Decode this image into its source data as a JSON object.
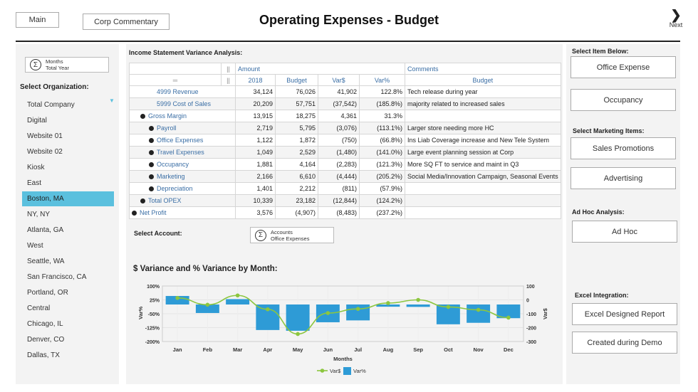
{
  "header": {
    "title": "Operating Expenses - Budget",
    "main_button": "Main",
    "corp_button": "Corp Commentary",
    "next_label": "Next"
  },
  "left": {
    "months_label": "Months",
    "months_value": "Total Year",
    "org_heading": "Select Organization:",
    "organizations": [
      "Total Company",
      "Digital",
      "Website 01",
      "Website 02",
      "Kiosk",
      "East",
      "Boston, MA",
      "NY, NY",
      "Atlanta, GA",
      "West",
      "Seattle, WA",
      "San Francisco, CA",
      "Portland, OR",
      "Central",
      "Chicago, IL",
      "Denver, CO",
      "Dallas, TX"
    ],
    "selected": "Boston, MA"
  },
  "table": {
    "title": "Income Statement Variance Analysis:",
    "group_amount": "Amount",
    "group_comments": "Comments",
    "columns": [
      "2018",
      "Budget",
      "Var$",
      "Var%",
      "Budget"
    ],
    "rows": [
      {
        "label": "4999 Revenue",
        "indent": 1,
        "icon": "none",
        "v": [
          "34,124",
          "76,026",
          "41,902",
          "122.8%"
        ],
        "comment": "Tech release during year"
      },
      {
        "label": "5999 Cost of Sales",
        "indent": 1,
        "icon": "none",
        "v": [
          "20,209",
          "57,751",
          "(37,542)",
          "(185.8%)"
        ],
        "comment": "majority related to increased sales"
      },
      {
        "label": "Gross Margin",
        "indent": 1,
        "icon": "collapse",
        "v": [
          "13,915",
          "18,275",
          "4,361",
          "31.3%"
        ],
        "comment": ""
      },
      {
        "label": "Payroll",
        "indent": 2,
        "icon": "expand",
        "v": [
          "2,719",
          "5,795",
          "(3,076)",
          "(113.1%)"
        ],
        "comment": "Larger store needing more HC"
      },
      {
        "label": "Office Expenses",
        "indent": 2,
        "icon": "expand",
        "v": [
          "1,122",
          "1,872",
          "(750)",
          "(66.8%)"
        ],
        "comment": "Ins Liab Coverage increase and New Tele System"
      },
      {
        "label": "Travel Expenses",
        "indent": 2,
        "icon": "expand",
        "v": [
          "1,049",
          "2,529",
          "(1,480)",
          "(141.0%)"
        ],
        "comment": "Large event planning session at Corp"
      },
      {
        "label": "Occupancy",
        "indent": 2,
        "icon": "expand",
        "v": [
          "1,881",
          "4,164",
          "(2,283)",
          "(121.3%)"
        ],
        "comment": "More SQ FT to service and maint in Q3"
      },
      {
        "label": "Marketing",
        "indent": 2,
        "icon": "expand",
        "v": [
          "2,166",
          "6,610",
          "(4,444)",
          "(205.2%)"
        ],
        "comment": "Social Media/Innovation Campaign, Seasonal Events"
      },
      {
        "label": "Depreciation",
        "indent": 2,
        "icon": "expand",
        "v": [
          "1,401",
          "2,212",
          "(811)",
          "(57.9%)"
        ],
        "comment": ""
      },
      {
        "label": "Total OPEX",
        "indent": 1,
        "icon": "collapse",
        "v": [
          "10,339",
          "23,182",
          "(12,844)",
          "(124.2%)"
        ],
        "comment": ""
      },
      {
        "label": "Net Profit",
        "indent": 0,
        "icon": "collapse",
        "v": [
          "3,576",
          "(4,907)",
          "(8,483)",
          "(237.2%)"
        ],
        "comment": ""
      }
    ]
  },
  "account": {
    "heading": "Select Account:",
    "label": "Accounts",
    "value": "Office Expenses"
  },
  "right": {
    "item_heading": "Select Item Below:",
    "items": [
      "Office Expense",
      "Occupancy"
    ],
    "marketing_heading": "Select Marketing Items:",
    "marketing": [
      "Sales Promotions",
      "Advertising"
    ],
    "adhoc_heading": "Ad Hoc Analysis:",
    "adhoc": "Ad Hoc",
    "excel_heading": "Excel Integration:",
    "excel": [
      "Excel Designed Report",
      "Created during Demo"
    ]
  },
  "chart_data": {
    "type": "bar+line",
    "title": "$ Variance and % Variance by Month:",
    "xlabel": "Months",
    "ylabel_left": "Var%",
    "ylabel_right": "Var$",
    "categories": [
      "Jan",
      "Feb",
      "Mar",
      "Apr",
      "May",
      "Jun",
      "Jul",
      "Aug",
      "Sep",
      "Oct",
      "Nov",
      "Dec"
    ],
    "y_left": {
      "range": [
        -200,
        100
      ],
      "ticks": [
        "100%",
        "25%",
        "-50%",
        "-125%",
        "-200%"
      ]
    },
    "y_right": {
      "range": [
        -300,
        100
      ],
      "ticks": [
        "100",
        "0",
        "-100",
        "-200",
        "-300"
      ]
    },
    "series": [
      {
        "name": "Var$",
        "type": "line",
        "axis": "right",
        "color": "#8cc63f",
        "values": [
          14,
          -35,
          32,
          -68,
          -246,
          -95,
          -65,
          -23,
          0,
          -51,
          -72,
          -128
        ]
      },
      {
        "name": "Var%",
        "type": "bar",
        "axis": "left",
        "color": "#2e9bd6",
        "values": [
          46,
          -46,
          29,
          -138,
          -142,
          -96,
          -86,
          -12,
          -13,
          -107,
          -99,
          -74
        ]
      }
    ],
    "legend": "bottom",
    "grid": true
  }
}
